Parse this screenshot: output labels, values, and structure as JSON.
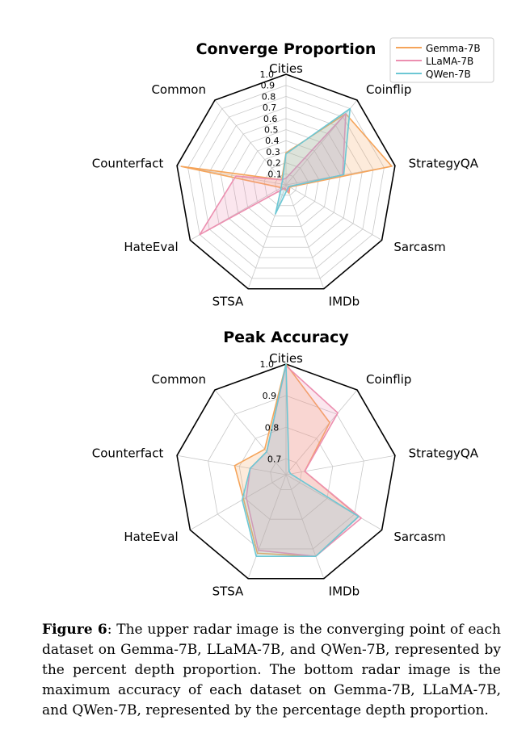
{
  "colors": {
    "gemma": "#f5a45a",
    "llama": "#ec8fb0",
    "qwen": "#6cc7d4"
  },
  "legend": {
    "items": [
      "Gemma-7B",
      "LLaMA-7B",
      "QWen-7B"
    ]
  },
  "chart_data": [
    {
      "type": "radar",
      "title": "Converge Proportion",
      "categories": [
        "Cities",
        "Coinflip",
        "StrategyQA",
        "Sarcasm",
        "IMDb",
        "STSA",
        "HateEval",
        "Counterfact",
        "Common"
      ],
      "rlim": [
        0,
        1
      ],
      "ticks": [
        0.1,
        0.2,
        0.3,
        0.4,
        0.5,
        0.6,
        0.7,
        0.8,
        0.9,
        1.0
      ],
      "tick_labels": [
        "0.1",
        "0.2",
        "0.3",
        "0.4",
        "0.5",
        "0.6",
        "0.7",
        "0.8",
        "0.9",
        "1.0"
      ],
      "series": [
        {
          "name": "Gemma-7B",
          "values": [
            0.29,
            0.84,
            0.97,
            0.04,
            0.08,
            0.04,
            0.05,
            0.96,
            0.06
          ]
        },
        {
          "name": "LLaMA-7B",
          "values": [
            0.06,
            0.84,
            0.52,
            0.03,
            0.07,
            0.03,
            0.9,
            0.46,
            0.06
          ]
        },
        {
          "name": "QWen-7B",
          "values": [
            0.28,
            0.9,
            0.53,
            0.03,
            0.04,
            0.28,
            0.05,
            0.04,
            0.05
          ]
        }
      ]
    },
    {
      "type": "radar",
      "title": "Peak Accuracy",
      "categories": [
        "Cities",
        "Coinflip",
        "StrategyQA",
        "Sarcasm",
        "IMDb",
        "STSA",
        "HateEval",
        "Counterfact",
        "Common"
      ],
      "rlim": [
        0.65,
        1.0
      ],
      "ticks": [
        0.7,
        0.8,
        0.9,
        1.0
      ],
      "tick_labels": [
        "0.7",
        "0.8",
        "0.9",
        "1.0"
      ],
      "series": [
        {
          "name": "Gemma-7B",
          "values": [
            1.0,
            0.865,
            0.71,
            0.915,
            0.925,
            0.915,
            0.805,
            0.815,
            0.755
          ]
        },
        {
          "name": "LLaMA-7B",
          "values": [
            0.995,
            0.905,
            0.71,
            0.925,
            0.925,
            0.905,
            0.795,
            0.765,
            0.745
          ]
        },
        {
          "name": "QWen-7B",
          "values": [
            1.0,
            0.665,
            0.665,
            0.915,
            0.925,
            0.925,
            0.81,
            0.765,
            0.745
          ]
        }
      ]
    }
  ],
  "caption": {
    "label": "Figure 6",
    "text": ": The upper radar image is the converging point of each dataset on Gemma-7B, LLaMA-7B, and QWen-7B, represented by the percent depth proportion. The bottom radar image is the maximum accuracy of each dataset on Gemma-7B, LLaMA-7B, and QWen-7B, represented by the percentage depth proportion."
  }
}
